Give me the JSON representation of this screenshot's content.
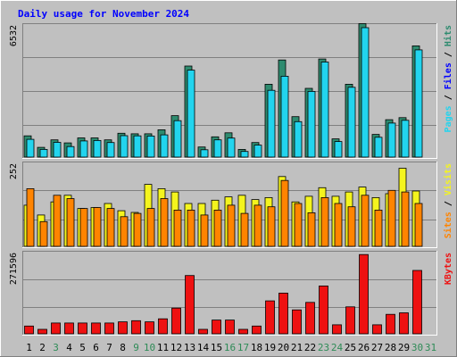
{
  "chart_data": {
    "type": "bar",
    "title": "Daily usage for November 2024",
    "categories": [
      "1",
      "2",
      "3",
      "4",
      "5",
      "6",
      "7",
      "8",
      "9",
      "10",
      "11",
      "12",
      "13",
      "14",
      "15",
      "16",
      "17",
      "18",
      "19",
      "20",
      "21",
      "22",
      "23",
      "24",
      "25",
      "26",
      "27",
      "28",
      "29",
      "30",
      "31"
    ],
    "weekend_days": [
      "3",
      "9",
      "10",
      "16",
      "17",
      "23",
      "24",
      "30",
      "31"
    ],
    "colors": {
      "pages": "#2e8b6f",
      "files": "#22d4ee",
      "visits": "#f4f41e",
      "sites": "#ff8400",
      "kbytes": "#ee1111",
      "background": "#c0c0c0",
      "weekend_label": "#2e8b57",
      "weekday_label": "#000000"
    },
    "panels": [
      {
        "name": "hits",
        "ymax_label": "6532",
        "side_labels": [
          {
            "text": "Pages",
            "color": "#22d4ee"
          },
          {
            "text": " / ",
            "color": "#000000"
          },
          {
            "text": "Files",
            "color": "#0000ff"
          },
          {
            "text": " / ",
            "color": "#000000"
          },
          {
            "text": "Hits",
            "color": "#2e8b6f"
          }
        ],
        "ymax": 6532,
        "series": [
          {
            "name": "Hits",
            "color": "#2e8b6f",
            "values": [
              1050,
              480,
              850,
              700,
              950,
              950,
              850,
              1180,
              1150,
              1150,
              1350,
              2050,
              4500,
              500,
              1000,
              1200,
              380,
              720,
              3600,
              4800,
              2000,
              3400,
              4850,
              900,
              3600,
              6600,
              1120,
              1850,
              1950,
              5500,
              0
            ]
          },
          {
            "name": "Files",
            "color": "#22d4ee",
            "values": [
              880,
              380,
              730,
              520,
              800,
              820,
              720,
              1060,
              1050,
              1040,
              1100,
              1800,
              4300,
              360,
              850,
              940,
              280,
              590,
              3300,
              4000,
              1750,
              3250,
              4700,
              770,
              3450,
              6400,
              980,
              1680,
              1820,
              5300,
              0
            ]
          }
        ]
      },
      {
        "name": "visits",
        "ymax_label": "252",
        "side_labels": [
          {
            "text": "Sites",
            "color": "#ff8400"
          },
          {
            "text": " / ",
            "color": "#000000"
          },
          {
            "text": "Visits",
            "color": "#f4f41e"
          }
        ],
        "ymax": 252,
        "series": [
          {
            "name": "Visits",
            "color": "#f4f41e",
            "values": [
              125,
              95,
              135,
              155,
              115,
              118,
              130,
              108,
              103,
              188,
              175,
              165,
              130,
              130,
              140,
              150,
              155,
              142,
              148,
              212,
              135,
              152,
              178,
              152,
              165,
              180,
              148,
              160,
              237,
              168,
              0
            ]
          },
          {
            "name": "Sites",
            "color": "#ff8400",
            "values": [
              175,
              75,
              155,
              145,
              115,
              118,
              115,
              90,
              100,
              115,
              145,
              110,
              110,
              95,
              110,
              125,
              100,
              125,
              120,
              200,
              130,
              102,
              148,
              130,
              120,
              155,
              110,
              170,
              165,
              130,
              0
            ]
          }
        ]
      },
      {
        "name": "kbytes",
        "ymax_label": "271596",
        "side_labels": [
          {
            "text": "KBytes",
            "color": "#ee1111"
          }
        ],
        "ymax": 271596,
        "series": [
          {
            "name": "KBytes",
            "color": "#ee1111",
            "values": [
              26000,
              15000,
              36000,
              36000,
              36000,
              36000,
              36000,
              40000,
              44000,
              40000,
              50000,
              86000,
              195000,
              15000,
              46000,
              46000,
              15000,
              26000,
              110000,
              136000,
              80000,
              105000,
              160000,
              30000,
              90000,
              265000,
              30000,
              65000,
              70000,
              212000,
              0
            ]
          }
        ]
      }
    ]
  }
}
